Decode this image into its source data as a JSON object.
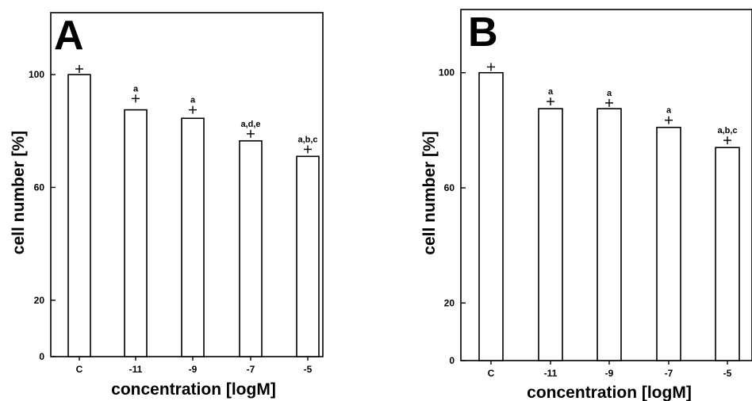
{
  "chart_data": [
    {
      "type": "bar",
      "panel_label": "A",
      "xlabel": "concentration [logM]",
      "ylabel": "cell number [%]",
      "categories": [
        "C",
        "-11",
        "-9",
        "-7",
        "-5"
      ],
      "values": [
        100,
        87.5,
        84.5,
        76.5,
        71
      ],
      "error_upper": [
        2,
        4,
        3,
        2.5,
        2.5
      ],
      "annotations": [
        "",
        "a",
        "a",
        "a,d,e",
        "a,b,c"
      ],
      "yticks": [
        0,
        20,
        60,
        100
      ],
      "ylim": [
        0,
        120
      ],
      "grid": false
    },
    {
      "type": "bar",
      "panel_label": "B",
      "xlabel": "concentration [logM]",
      "ylabel": "cell number [%]",
      "categories": [
        "C",
        "-11",
        "-9",
        "-7",
        "-5"
      ],
      "values": [
        100,
        87.5,
        87.5,
        81,
        74
      ],
      "error_upper": [
        2,
        2.5,
        2,
        2.5,
        2.5
      ],
      "annotations": [
        "",
        "a",
        "a",
        "a",
        "a,b,c"
      ],
      "yticks": [
        0,
        20,
        60,
        100
      ],
      "ylim": [
        0,
        120
      ],
      "grid": false
    }
  ]
}
